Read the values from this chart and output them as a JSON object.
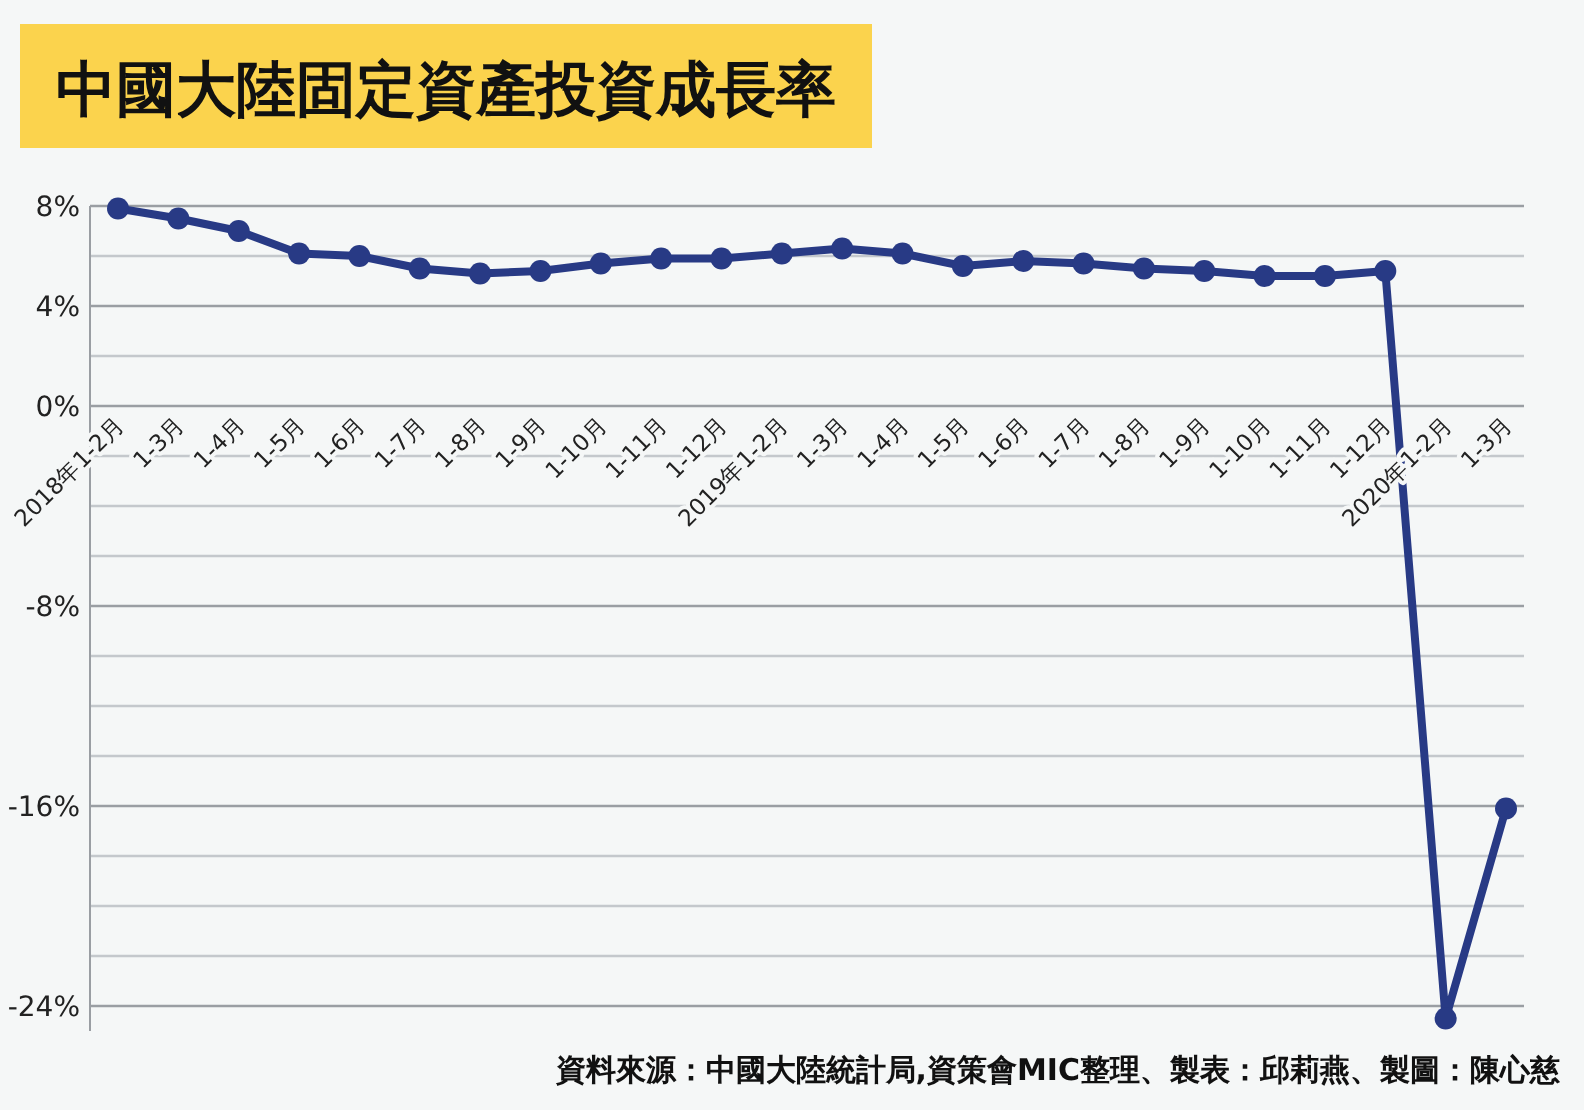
{
  "chart_data": {
    "type": "line",
    "title": "中國大陸固定資產投資成長率",
    "categories": [
      "2018年1-2月",
      "1-3月",
      "1-4月",
      "1-5月",
      "1-6月",
      "1-7月",
      "1-8月",
      "1-9月",
      "1-10月",
      "1-11月",
      "1-12月",
      "2019年1-2月",
      "1-3月",
      "1-4月",
      "1-5月",
      "1-6月",
      "1-7月",
      "1-8月",
      "1-9月",
      "1-10月",
      "1-11月",
      "1-12月",
      "2020年1-2月",
      "1-3月"
    ],
    "values": [
      7.9,
      7.5,
      7.0,
      6.1,
      6.0,
      5.5,
      5.3,
      5.4,
      5.7,
      5.9,
      5.9,
      6.1,
      6.3,
      6.1,
      5.6,
      5.8,
      5.7,
      5.5,
      5.4,
      5.2,
      5.2,
      5.4,
      -24.5,
      -16.1
    ],
    "color": "#283a85",
    "marker": "circle",
    "line_style": "solid",
    "grid": "y",
    "ylim": [
      -25,
      8
    ],
    "yticks": [
      {
        "value": 8,
        "label": "8%"
      },
      {
        "value": 6,
        "label": null
      },
      {
        "value": 4,
        "label": "4%"
      },
      {
        "value": 2,
        "label": null
      },
      {
        "value": 0,
        "label": "0%"
      },
      {
        "value": -2,
        "label": null
      },
      {
        "value": -4,
        "label": null
      },
      {
        "value": -6,
        "label": null
      },
      {
        "value": -8,
        "label": "-8%"
      },
      {
        "value": -10,
        "label": null
      },
      {
        "value": -12,
        "label": null
      },
      {
        "value": -14,
        "label": null
      },
      {
        "value": -16,
        "label": "-16%"
      },
      {
        "value": -18,
        "label": null
      },
      {
        "value": -20,
        "label": null
      },
      {
        "value": -22,
        "label": null
      },
      {
        "value": -24,
        "label": "-24%"
      }
    ],
    "annotations": [
      "資料來源：中國大陸統計局,資策會MIC整理、製表：邱莉燕、製圖：陳心慈"
    ]
  }
}
